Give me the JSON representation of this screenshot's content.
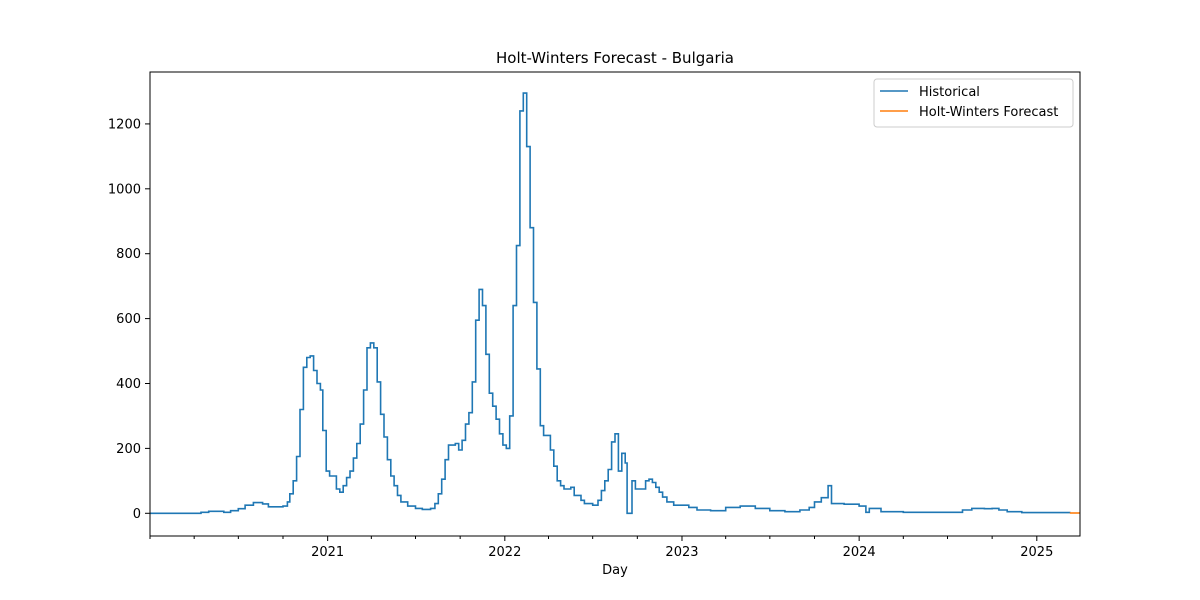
{
  "chart_data": {
    "type": "line",
    "title": "Holt-Winters Forecast - Bulgaria",
    "xlabel": "Day",
    "ylabel": "",
    "xlim": [
      "2020-01-01",
      "2025-03-31"
    ],
    "ylim": [
      -70,
      1360
    ],
    "yticks": [
      0,
      200,
      400,
      600,
      800,
      1000,
      1200
    ],
    "xticks": [
      {
        "date": "2021-01-01",
        "label": "2021"
      },
      {
        "date": "2022-01-01",
        "label": "2022"
      },
      {
        "date": "2023-01-01",
        "label": "2023"
      },
      {
        "date": "2024-01-01",
        "label": "2024"
      },
      {
        "date": "2025-01-01",
        "label": "2025"
      }
    ],
    "legend": "top-right",
    "grid": false,
    "series": [
      {
        "name": "Historical",
        "color": "#1f77b4",
        "step": true,
        "points": [
          [
            "2020-01-01",
            0
          ],
          [
            "2020-03-15",
            0
          ],
          [
            "2020-04-15",
            3
          ],
          [
            "2020-05-01",
            6
          ],
          [
            "2020-06-01",
            3
          ],
          [
            "2020-06-15",
            8
          ],
          [
            "2020-07-01",
            14
          ],
          [
            "2020-07-15",
            25
          ],
          [
            "2020-08-01",
            33
          ],
          [
            "2020-08-20",
            29
          ],
          [
            "2020-09-01",
            20
          ],
          [
            "2020-10-01",
            22
          ],
          [
            "2020-10-10",
            35
          ],
          [
            "2020-10-15",
            60
          ],
          [
            "2020-10-22",
            100
          ],
          [
            "2020-10-29",
            175
          ],
          [
            "2020-11-05",
            320
          ],
          [
            "2020-11-12",
            450
          ],
          [
            "2020-11-19",
            480
          ],
          [
            "2020-11-26",
            485
          ],
          [
            "2020-12-03",
            440
          ],
          [
            "2020-12-10",
            400
          ],
          [
            "2020-12-17",
            380
          ],
          [
            "2020-12-22",
            255
          ],
          [
            "2020-12-29",
            130
          ],
          [
            "2021-01-05",
            115
          ],
          [
            "2021-01-19",
            75
          ],
          [
            "2021-01-26",
            65
          ],
          [
            "2021-02-02",
            85
          ],
          [
            "2021-02-09",
            110
          ],
          [
            "2021-02-16",
            130
          ],
          [
            "2021-02-23",
            170
          ],
          [
            "2021-03-02",
            215
          ],
          [
            "2021-03-09",
            275
          ],
          [
            "2021-03-16",
            380
          ],
          [
            "2021-03-23",
            510
          ],
          [
            "2021-03-30",
            525
          ],
          [
            "2021-04-06",
            510
          ],
          [
            "2021-04-13",
            405
          ],
          [
            "2021-04-20",
            305
          ],
          [
            "2021-04-27",
            235
          ],
          [
            "2021-05-04",
            165
          ],
          [
            "2021-05-11",
            115
          ],
          [
            "2021-05-18",
            85
          ],
          [
            "2021-05-25",
            55
          ],
          [
            "2021-06-01",
            35
          ],
          [
            "2021-06-15",
            22
          ],
          [
            "2021-07-01",
            15
          ],
          [
            "2021-07-15",
            12
          ],
          [
            "2021-08-01",
            15
          ],
          [
            "2021-08-10",
            30
          ],
          [
            "2021-08-17",
            60
          ],
          [
            "2021-08-24",
            105
          ],
          [
            "2021-08-31",
            165
          ],
          [
            "2021-09-07",
            210
          ],
          [
            "2021-09-21",
            215
          ],
          [
            "2021-09-28",
            195
          ],
          [
            "2021-10-05",
            225
          ],
          [
            "2021-10-12",
            275
          ],
          [
            "2021-10-19",
            310
          ],
          [
            "2021-10-26",
            405
          ],
          [
            "2021-11-02",
            595
          ],
          [
            "2021-11-09",
            690
          ],
          [
            "2021-11-16",
            640
          ],
          [
            "2021-11-23",
            490
          ],
          [
            "2021-11-30",
            370
          ],
          [
            "2021-12-07",
            330
          ],
          [
            "2021-12-14",
            290
          ],
          [
            "2021-12-21",
            245
          ],
          [
            "2021-12-28",
            210
          ],
          [
            "2022-01-04",
            200
          ],
          [
            "2022-01-11",
            300
          ],
          [
            "2022-01-18",
            640
          ],
          [
            "2022-01-25",
            825
          ],
          [
            "2022-02-01",
            1240
          ],
          [
            "2022-02-08",
            1295
          ],
          [
            "2022-02-15",
            1130
          ],
          [
            "2022-02-22",
            880
          ],
          [
            "2022-03-01",
            650
          ],
          [
            "2022-03-08",
            445
          ],
          [
            "2022-03-15",
            270
          ],
          [
            "2022-03-22",
            240
          ],
          [
            "2022-04-05",
            195
          ],
          [
            "2022-04-12",
            145
          ],
          [
            "2022-04-19",
            100
          ],
          [
            "2022-04-26",
            85
          ],
          [
            "2022-05-03",
            75
          ],
          [
            "2022-05-17",
            80
          ],
          [
            "2022-05-24",
            55
          ],
          [
            "2022-06-07",
            40
          ],
          [
            "2022-06-14",
            30
          ],
          [
            "2022-07-01",
            25
          ],
          [
            "2022-07-12",
            40
          ],
          [
            "2022-07-19",
            70
          ],
          [
            "2022-07-26",
            100
          ],
          [
            "2022-08-02",
            135
          ],
          [
            "2022-08-09",
            220
          ],
          [
            "2022-08-16",
            245
          ],
          [
            "2022-08-23",
            130
          ],
          [
            "2022-08-30",
            185
          ],
          [
            "2022-09-06",
            155
          ],
          [
            "2022-09-10",
            0
          ],
          [
            "2022-09-20",
            100
          ],
          [
            "2022-09-27",
            75
          ],
          [
            "2022-10-18",
            100
          ],
          [
            "2022-10-25",
            105
          ],
          [
            "2022-11-01",
            95
          ],
          [
            "2022-11-08",
            80
          ],
          [
            "2022-11-15",
            65
          ],
          [
            "2022-11-22",
            50
          ],
          [
            "2022-12-01",
            35
          ],
          [
            "2022-12-15",
            25
          ],
          [
            "2023-01-01",
            25
          ],
          [
            "2023-01-15",
            18
          ],
          [
            "2023-02-01",
            10
          ],
          [
            "2023-03-01",
            8
          ],
          [
            "2023-04-01",
            18
          ],
          [
            "2023-05-01",
            22
          ],
          [
            "2023-06-01",
            15
          ],
          [
            "2023-07-01",
            8
          ],
          [
            "2023-08-01",
            5
          ],
          [
            "2023-09-01",
            10
          ],
          [
            "2023-09-20",
            18
          ],
          [
            "2023-10-01",
            35
          ],
          [
            "2023-10-15",
            48
          ],
          [
            "2023-10-29",
            85
          ],
          [
            "2023-11-05",
            30
          ],
          [
            "2023-12-01",
            28
          ],
          [
            "2024-01-01",
            22
          ],
          [
            "2024-01-15",
            3
          ],
          [
            "2024-01-22",
            15
          ],
          [
            "2024-02-15",
            5
          ],
          [
            "2024-04-01",
            3
          ],
          [
            "2024-07-01",
            3
          ],
          [
            "2024-08-01",
            10
          ],
          [
            "2024-08-20",
            15
          ],
          [
            "2024-09-15",
            14
          ],
          [
            "2024-10-01",
            15
          ],
          [
            "2024-10-15",
            10
          ],
          [
            "2024-11-01",
            5
          ],
          [
            "2024-12-01",
            2
          ],
          [
            "2025-03-10",
            0
          ]
        ]
      },
      {
        "name": "Holt-Winters Forecast",
        "color": "#ff7f0e",
        "step": false,
        "points": [
          [
            "2025-03-10",
            1
          ],
          [
            "2025-03-31",
            1
          ]
        ]
      }
    ]
  }
}
